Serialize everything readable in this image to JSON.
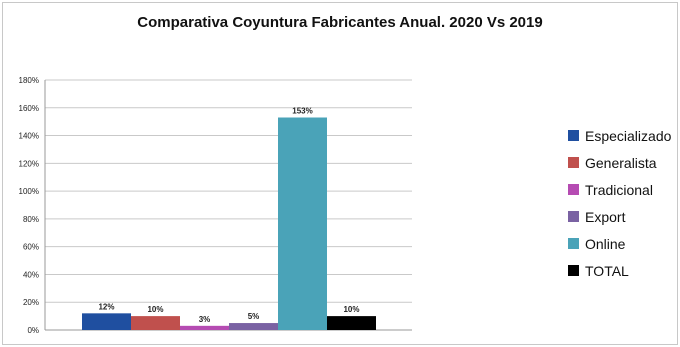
{
  "chart_data": {
    "type": "bar",
    "title": "Comparativa Coyuntura Fabricantes Anual. 2020 Vs 2019",
    "categories": [
      "Especializado",
      "Generalista",
      "Tradicional",
      "Export",
      "Online",
      "TOTAL"
    ],
    "values": [
      12,
      10,
      3,
      5,
      153,
      10
    ],
    "data_labels": [
      "12%",
      "10%",
      "3%",
      "5%",
      "153%",
      "10%"
    ],
    "colors": [
      "#1f4fa0",
      "#c0504d",
      "#b54bb2",
      "#7a62a3",
      "#4aa3b8",
      "#000000"
    ],
    "ylim": [
      0,
      180
    ],
    "yticks": [
      0,
      20,
      40,
      60,
      80,
      100,
      120,
      140,
      160,
      180
    ],
    "ytick_labels": [
      "0%",
      "20%",
      "40%",
      "60%",
      "80%",
      "100%",
      "120%",
      "140%",
      "160%",
      "180%"
    ],
    "xlabel": "",
    "ylabel": "",
    "grid": true,
    "legend_position": "right"
  }
}
